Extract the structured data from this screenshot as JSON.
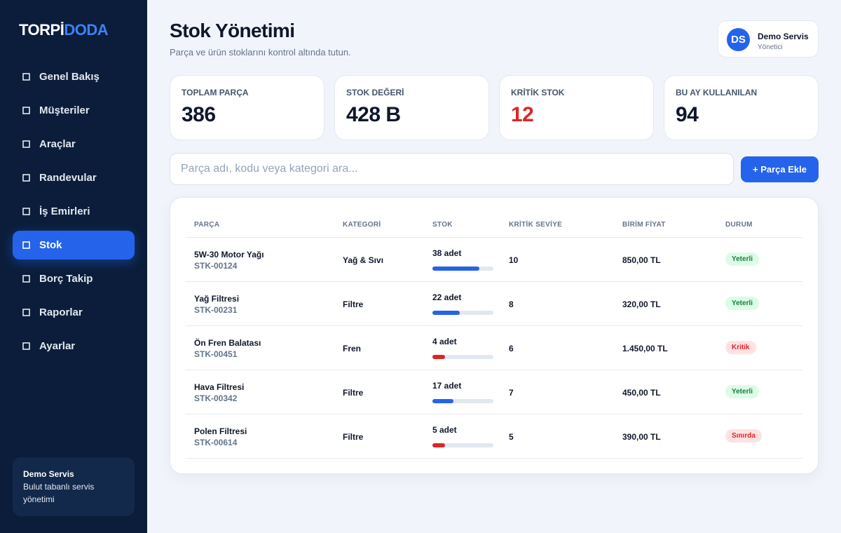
{
  "sidebar": {
    "logo": [
      "TORPİ",
      "DODA"
    ],
    "nav": [
      "Genel Bakış",
      "Müşteriler",
      "Araçlar",
      "Randevular",
      "İş Emirleri",
      "Stok",
      "Borç Takip",
      "Raporlar",
      "Ayarlar"
    ],
    "active": 5,
    "footer": {
      "title": "Demo Servis",
      "text": "Bulut tabanlı servis yönetimi"
    }
  },
  "header": {
    "title": "Stok Yönetimi",
    "subtitle": "Parça ve ürün stoklarını kontrol altında tutun.",
    "user": {
      "initials": "DS",
      "name": "Demo Servis",
      "role": "Yönetici"
    }
  },
  "stats": [
    {
      "label": "TOPLAM PARÇA",
      "value": 386,
      "color": "#0f172a"
    },
    {
      "label": "STOK DEĞERİ",
      "value": "428 B",
      "color": "#0f172a"
    },
    {
      "label": "KRİTİK STOK",
      "value": 12,
      "color": "#dc2626"
    },
    {
      "label": "BU AY KULLANILAN",
      "value": 94,
      "color": "#0f172a"
    }
  ],
  "search": {
    "placeholder": "Parça adı, kodu veya kategori ara..."
  },
  "add_button": "+ Parça Ekle",
  "table": {
    "columns": [
      "PARÇA",
      "KATEGORİ",
      "STOK",
      "KRİTİK SEVİYE",
      "BİRİM FİYAT",
      "DURUM"
    ],
    "rows": [
      {
        "name": "5W-30 Motor Yağı",
        "code": "STK-00124",
        "category": "Yağ & Sıvı",
        "stock": {
          "value": 38,
          "label": "38 adet"
        },
        "critical": 10,
        "price": "850,00 TL",
        "status": "Yeterli",
        "bar_color": "#2563eb",
        "status_color": "#15803d",
        "status_bg": "#dcfce7"
      },
      {
        "name": "Yağ Filtresi",
        "code": "STK-00231",
        "category": "Filtre",
        "stock": {
          "value": 22,
          "label": "22 adet"
        },
        "critical": 8,
        "price": "320,00 TL",
        "status": "Yeterli",
        "bar_color": "#2563eb",
        "status_color": "#15803d",
        "status_bg": "#dcfce7"
      },
      {
        "name": "Ön Fren Balatası",
        "code": "STK-00451",
        "category": "Fren",
        "stock": {
          "value": 4,
          "label": "4 adet"
        },
        "critical": 6,
        "price": "1.450,00 TL",
        "status": "Kritik",
        "bar_color": "#dc2626",
        "status_color": "#dc2626",
        "status_bg": "#fee2e2"
      },
      {
        "name": "Hava Filtresi",
        "code": "STK-00342",
        "category": "Filtre",
        "stock": {
          "value": 17,
          "label": "17 adet"
        },
        "critical": 7,
        "price": "450,00 TL",
        "status": "Yeterli",
        "bar_color": "#2563eb",
        "status_color": "#15803d",
        "status_bg": "#dcfce7"
      },
      {
        "name": "Polen Filtresi",
        "code": "STK-00614",
        "category": "Filtre",
        "stock": {
          "value": 5,
          "label": "5 adet"
        },
        "critical": 5,
        "price": "390,00 TL",
        "status": "Sınırda",
        "bar_color": "#dc2626",
        "status_color": "#dc2626",
        "status_bg": "#fee2e2"
      }
    ]
  }
}
